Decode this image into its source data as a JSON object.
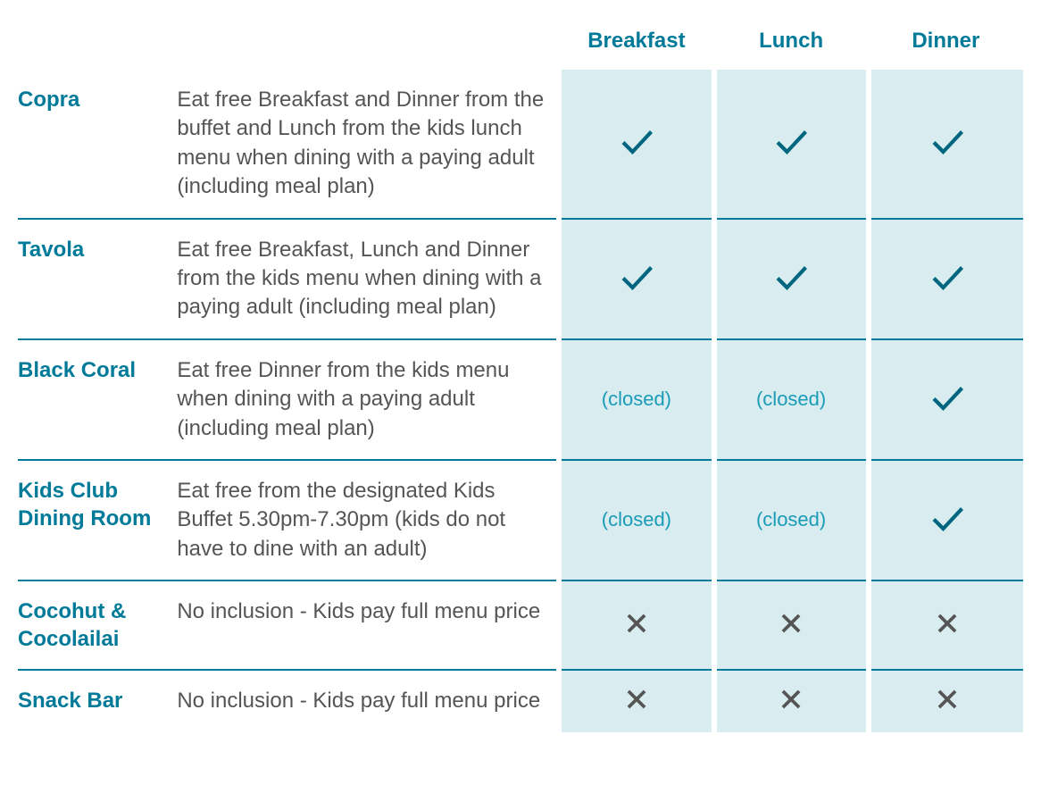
{
  "columns": {
    "breakfast": "Breakfast",
    "lunch": "Lunch",
    "dinner": "Dinner"
  },
  "closed_label": "(closed)",
  "colors": {
    "accent": "#007a99",
    "meal_bg": "#d9ecef",
    "text": "#555555",
    "closed_text": "#1a9cb7",
    "check_fill": "#006680",
    "cross_fill": "#555555",
    "background": "#ffffff"
  },
  "rows": [
    {
      "name": "Copra",
      "desc": "Eat free Breakfast and Dinner from the buffet and Lunch from the kids lunch menu when dining with a paying adult (including meal plan)",
      "breakfast": "check",
      "lunch": "check",
      "dinner": "check"
    },
    {
      "name": "Tavola",
      "desc": "Eat free Breakfast, Lunch and Dinner from the kids menu when dining with a paying adult (including meal plan)",
      "breakfast": "check",
      "lunch": "check",
      "dinner": "check"
    },
    {
      "name": "Black Coral",
      "desc": "Eat free Dinner from the kids menu when dining with a paying adult (including meal plan)",
      "breakfast": "closed",
      "lunch": "closed",
      "dinner": "check"
    },
    {
      "name": "Kids Club Dining Room",
      "desc": "Eat free from the designated Kids Buffet 5.30pm-7.30pm (kids do not have to dine with an adult)",
      "breakfast": "closed",
      "lunch": "closed",
      "dinner": "check"
    },
    {
      "name": "Cocohut & Cocolailai",
      "desc": "No inclusion - Kids pay full menu price",
      "breakfast": "cross",
      "lunch": "cross",
      "dinner": "cross"
    },
    {
      "name": "Snack Bar",
      "desc": "No inclusion - Kids pay full menu price",
      "breakfast": "cross",
      "lunch": "cross",
      "dinner": "cross"
    }
  ]
}
